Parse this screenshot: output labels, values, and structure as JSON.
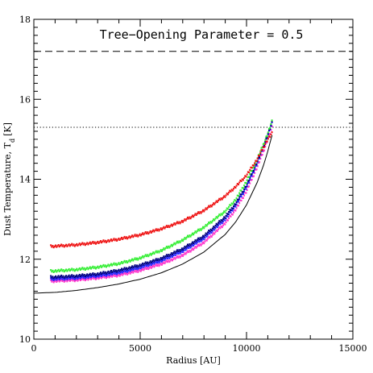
{
  "chart_data": {
    "type": "scatter",
    "title": "Tree−Opening Parameter = 0.5",
    "xlabel": "Radius [AU]",
    "ylabel": "Dust Temperature, T",
    "ylabel_subscript": "d",
    "ylabel_unit": "[K]",
    "xlim": [
      0,
      15000
    ],
    "ylim": [
      10,
      18
    ],
    "x_ticks": [
      "0",
      "5000",
      "10000",
      "15000"
    ],
    "y_ticks": [
      "10",
      "12",
      "14",
      "16",
      "18"
    ],
    "grid": false,
    "reference_lines": [
      {
        "style": "dashed",
        "y": 17.2
      },
      {
        "style": "dotted",
        "y": 15.3
      }
    ],
    "series": [
      {
        "color": "#ff33cc",
        "style": "points",
        "x": [
          800,
          2000,
          3000,
          4000,
          5000,
          6000,
          7000,
          8000,
          9000,
          9500,
          10000,
          10500,
          10800,
          11000,
          11200
        ],
        "y": [
          11.45,
          11.48,
          11.53,
          11.6,
          11.72,
          11.88,
          12.1,
          12.42,
          12.9,
          13.25,
          13.7,
          14.3,
          14.7,
          15.0,
          15.3
        ]
      },
      {
        "color": "#2222ff",
        "style": "points",
        "x": [
          800,
          2000,
          3000,
          4000,
          5000,
          6000,
          7000,
          8000,
          9000,
          9500,
          10000,
          10500,
          10800,
          11000,
          11200
        ],
        "y": [
          11.5,
          11.53,
          11.58,
          11.66,
          11.79,
          11.96,
          12.2,
          12.52,
          13.0,
          13.35,
          13.8,
          14.4,
          14.8,
          15.1,
          15.4
        ]
      },
      {
        "color": "#000080",
        "style": "points",
        "x": [
          800,
          2000,
          3000,
          4000,
          5000,
          6000,
          7000,
          8000,
          9000,
          9500,
          10000,
          10500,
          10800,
          11000,
          11200
        ],
        "y": [
          11.55,
          11.58,
          11.63,
          11.72,
          11.85,
          12.02,
          12.26,
          12.58,
          13.06,
          13.4,
          13.85,
          14.43,
          14.82,
          15.12,
          15.42
        ]
      },
      {
        "color": "#33ee33",
        "style": "points",
        "x": [
          800,
          2000,
          3000,
          4000,
          5000,
          6000,
          7000,
          8000,
          9000,
          9500,
          10000,
          10500,
          10800,
          11000,
          11200
        ],
        "y": [
          11.7,
          11.74,
          11.8,
          11.89,
          12.03,
          12.22,
          12.48,
          12.8,
          13.2,
          13.5,
          13.95,
          14.5,
          14.88,
          15.15,
          15.45
        ]
      },
      {
        "color": "#ee1111",
        "style": "points",
        "x": [
          800,
          2000,
          3000,
          4000,
          5000,
          6000,
          7000,
          8000,
          9000,
          9500,
          10000,
          10500,
          10800,
          11000,
          11200
        ],
        "y": [
          12.32,
          12.36,
          12.42,
          12.5,
          12.61,
          12.76,
          12.95,
          13.22,
          13.58,
          13.82,
          14.1,
          14.5,
          14.8,
          15.0,
          15.15
        ]
      },
      {
        "color": "#000000",
        "style": "line",
        "x": [
          0,
          1000,
          2000,
          3000,
          4000,
          5000,
          6000,
          7000,
          8000,
          9000,
          9500,
          10000,
          10500,
          10800,
          11000,
          11200
        ],
        "y": [
          11.15,
          11.17,
          11.22,
          11.29,
          11.38,
          11.5,
          11.66,
          11.88,
          12.18,
          12.62,
          12.94,
          13.36,
          13.92,
          14.35,
          14.7,
          15.1
        ]
      }
    ]
  }
}
